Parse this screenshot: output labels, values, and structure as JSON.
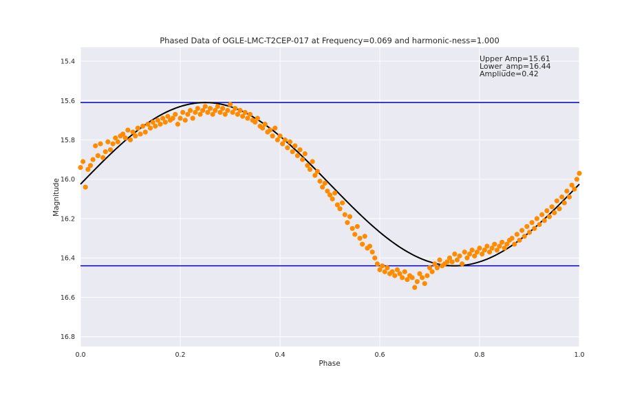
{
  "chart_data": {
    "type": "scatter",
    "title": "Phased Data of OGLE-LMC-T2CEP-017 at Frequency=0.069 and harmonic-ness=1.000",
    "xlabel": "Phase",
    "ylabel": "Magnitude",
    "xlim": [
      0.0,
      1.0
    ],
    "ylim": [
      15.33,
      16.85
    ],
    "y_inverted": true,
    "grid": true,
    "x_ticks": [
      "0.0",
      "0.2",
      "0.4",
      "0.6",
      "0.8",
      "1.0"
    ],
    "y_ticks": [
      "15.4",
      "15.6",
      "15.8",
      "16.0",
      "16.2",
      "16.4",
      "16.6",
      "16.8"
    ],
    "x_tick_values": [
      0.0,
      0.2,
      0.4,
      0.6,
      0.8,
      1.0
    ],
    "y_tick_values": [
      15.4,
      15.6,
      15.8,
      16.0,
      16.2,
      16.4,
      16.6,
      16.8
    ],
    "annotations": [
      "Upper Amp=15.61",
      "Lower_amp=16.44",
      "Ampliude=0.42"
    ],
    "hlines": [
      15.61,
      16.44
    ],
    "fit_curve": {
      "mean": 16.025,
      "amplitude": 0.415,
      "frequency_cycles_per_phase": 1,
      "peak_phase": 0.25
    },
    "series": [
      {
        "x": [
          0.0,
          0.005,
          0.01,
          0.015,
          0.02,
          0.025,
          0.03,
          0.035,
          0.04,
          0.045,
          0.05,
          0.055,
          0.06,
          0.065,
          0.07,
          0.075,
          0.08,
          0.085,
          0.09,
          0.095,
          0.1,
          0.105,
          0.11,
          0.115,
          0.12,
          0.125,
          0.13,
          0.135,
          0.14,
          0.145,
          0.15,
          0.155,
          0.16,
          0.165,
          0.17,
          0.175,
          0.18,
          0.185,
          0.19,
          0.195,
          0.2,
          0.205,
          0.21,
          0.215,
          0.22,
          0.225,
          0.23,
          0.235,
          0.24,
          0.245,
          0.25,
          0.255,
          0.26,
          0.265,
          0.27,
          0.275,
          0.28,
          0.285,
          0.29,
          0.295,
          0.3,
          0.305,
          0.31,
          0.315,
          0.32,
          0.325,
          0.33,
          0.335,
          0.34,
          0.345,
          0.35,
          0.355,
          0.36,
          0.365,
          0.37,
          0.375,
          0.38,
          0.385,
          0.39,
          0.395,
          0.4,
          0.405,
          0.41,
          0.415,
          0.42,
          0.425,
          0.43,
          0.435,
          0.44,
          0.445,
          0.45,
          0.455,
          0.46,
          0.465,
          0.47,
          0.475,
          0.48,
          0.485,
          0.49,
          0.495,
          0.5,
          0.505,
          0.51,
          0.515,
          0.52,
          0.525,
          0.53,
          0.535,
          0.54,
          0.545,
          0.55,
          0.555,
          0.56,
          0.565,
          0.57,
          0.575,
          0.58,
          0.585,
          0.59,
          0.595,
          0.6,
          0.605,
          0.61,
          0.615,
          0.62,
          0.625,
          0.63,
          0.635,
          0.64,
          0.645,
          0.65,
          0.655,
          0.66,
          0.665,
          0.67,
          0.675,
          0.68,
          0.685,
          0.69,
          0.695,
          0.7,
          0.705,
          0.71,
          0.715,
          0.72,
          0.725,
          0.73,
          0.735,
          0.74,
          0.745,
          0.75,
          0.755,
          0.76,
          0.765,
          0.77,
          0.775,
          0.78,
          0.785,
          0.79,
          0.795,
          0.8,
          0.805,
          0.81,
          0.815,
          0.82,
          0.825,
          0.83,
          0.835,
          0.84,
          0.845,
          0.85,
          0.855,
          0.86,
          0.865,
          0.87,
          0.875,
          0.88,
          0.885,
          0.89,
          0.895,
          0.9,
          0.905,
          0.91,
          0.915,
          0.92,
          0.925,
          0.93,
          0.935,
          0.94,
          0.945,
          0.95,
          0.955,
          0.96,
          0.965,
          0.97,
          0.975,
          0.98,
          0.985,
          0.99,
          0.995,
          1.0
        ],
        "y": [
          15.94,
          15.91,
          16.04,
          15.95,
          15.93,
          15.9,
          15.83,
          15.88,
          15.82,
          15.89,
          15.86,
          15.81,
          15.85,
          15.82,
          15.79,
          15.81,
          15.78,
          15.77,
          15.79,
          15.75,
          15.8,
          15.76,
          15.78,
          15.74,
          15.77,
          15.73,
          15.76,
          15.72,
          15.74,
          15.71,
          15.73,
          15.7,
          15.72,
          15.69,
          15.71,
          15.68,
          15.7,
          15.69,
          15.67,
          15.72,
          15.69,
          15.66,
          15.7,
          15.67,
          15.65,
          15.69,
          15.66,
          15.64,
          15.67,
          15.65,
          15.63,
          15.66,
          15.64,
          15.67,
          15.65,
          15.63,
          15.66,
          15.64,
          15.67,
          15.65,
          15.62,
          15.66,
          15.64,
          15.67,
          15.65,
          15.68,
          15.66,
          15.69,
          15.67,
          15.7,
          15.71,
          15.69,
          15.73,
          15.74,
          15.72,
          15.76,
          15.75,
          15.78,
          15.74,
          15.8,
          15.78,
          15.82,
          15.8,
          15.84,
          15.81,
          15.86,
          15.83,
          15.88,
          15.85,
          15.9,
          15.87,
          15.93,
          15.95,
          15.91,
          15.98,
          15.96,
          16.01,
          16.04,
          16.02,
          16.06,
          16.08,
          16.1,
          16.07,
          16.13,
          16.15,
          16.12,
          16.18,
          16.22,
          16.19,
          16.25,
          16.28,
          16.24,
          16.3,
          16.33,
          16.29,
          16.35,
          16.34,
          16.37,
          16.4,
          16.43,
          16.46,
          16.44,
          16.47,
          16.45,
          16.48,
          16.47,
          16.49,
          16.46,
          16.48,
          16.5,
          16.47,
          16.51,
          16.49,
          16.5,
          16.55,
          16.52,
          16.48,
          16.5,
          16.53,
          16.49,
          16.45,
          16.47,
          16.43,
          16.45,
          16.41,
          16.44,
          16.43,
          16.42,
          16.4,
          16.42,
          16.38,
          16.41,
          16.39,
          16.43,
          16.37,
          16.4,
          16.38,
          16.36,
          16.39,
          16.37,
          16.35,
          16.38,
          16.36,
          16.34,
          16.37,
          16.35,
          16.33,
          16.36,
          16.34,
          16.32,
          16.35,
          16.33,
          16.31,
          16.3,
          16.33,
          16.28,
          16.31,
          16.26,
          16.29,
          16.24,
          16.27,
          16.22,
          16.25,
          16.2,
          16.23,
          16.18,
          16.21,
          16.16,
          16.19,
          16.14,
          16.17,
          16.11,
          16.15,
          16.09,
          16.12,
          16.06,
          16.09,
          16.03,
          16.05,
          16.0,
          15.97
        ]
      }
    ]
  },
  "colors": {
    "background": "#ffffff",
    "plot_area": "#eaeaf2",
    "grid": "#ffffff",
    "points": "#ff8c00",
    "fit": "#000000",
    "hline": "#0000cc",
    "text": "#262626"
  }
}
